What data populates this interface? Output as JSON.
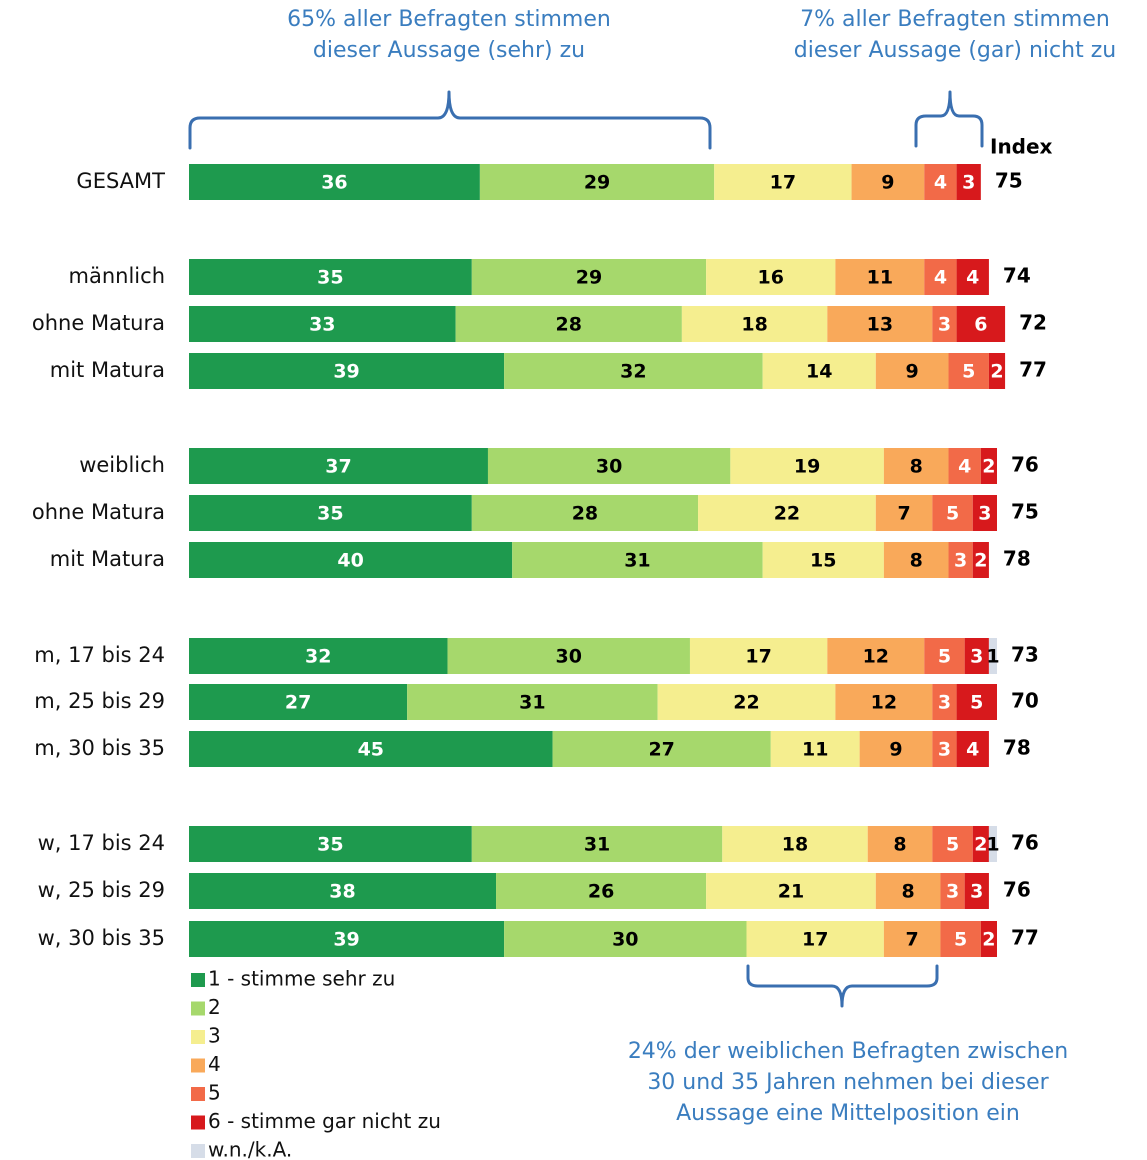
{
  "chart_data": {
    "type": "stacked_bar_horizontal",
    "categories": [
      "GESAMT",
      "männlich",
      "ohne Matura",
      "mit Matura",
      "weiblich",
      "ohne Matura",
      "mit Matura",
      "m, 17 bis 24",
      "m, 25 bis 29",
      "m, 30 bis 35",
      "w, 17 bis 24",
      "w, 25 bis 29",
      "w, 30 bis 35"
    ],
    "series": [
      {
        "name": "1 - stimme sehr zu",
        "color": "#1e9a4e",
        "values": [
          36,
          35,
          33,
          39,
          37,
          35,
          40,
          32,
          27,
          45,
          35,
          38,
          39
        ]
      },
      {
        "name": "2",
        "color": "#a6d86c",
        "values": [
          29,
          29,
          28,
          32,
          30,
          28,
          31,
          30,
          31,
          27,
          31,
          26,
          30
        ]
      },
      {
        "name": "3",
        "color": "#f5ee8f",
        "values": [
          17,
          16,
          18,
          14,
          19,
          22,
          15,
          17,
          22,
          11,
          18,
          21,
          17
        ]
      },
      {
        "name": "4",
        "color": "#f9a95a",
        "values": [
          9,
          11,
          13,
          9,
          8,
          7,
          8,
          12,
          12,
          9,
          8,
          8,
          7
        ]
      },
      {
        "name": "5",
        "color": "#f26a48",
        "values": [
          4,
          4,
          3,
          5,
          4,
          5,
          3,
          5,
          3,
          3,
          5,
          3,
          5
        ]
      },
      {
        "name": "6 - stimme gar nicht zu",
        "color": "#d7191c",
        "values": [
          3,
          4,
          6,
          2,
          2,
          3,
          2,
          3,
          5,
          4,
          2,
          3,
          2
        ]
      },
      {
        "name": "w.n./k.A.",
        "color": "#d6dde8",
        "values": [
          0,
          0,
          0,
          0,
          0,
          0,
          0,
          1,
          0,
          0,
          1,
          0,
          0
        ]
      }
    ],
    "index_header": "Index",
    "index": [
      75,
      74,
      72,
      77,
      76,
      75,
      78,
      73,
      70,
      78,
      76,
      76,
      77
    ],
    "annotations": [
      [
        "65% aller Befragten stimmen",
        "dieser Aussage (sehr) zu"
      ],
      [
        "7% aller Befragten stimmen",
        "dieser Aussage (gar) nicht zu"
      ],
      [
        "24% der weiblichen Befragten zwischen",
        "30 und 35 Jahren nehmen bei dieser",
        "Aussage eine Mittelposition ein"
      ]
    ],
    "xlim": [
      0,
      100
    ]
  }
}
